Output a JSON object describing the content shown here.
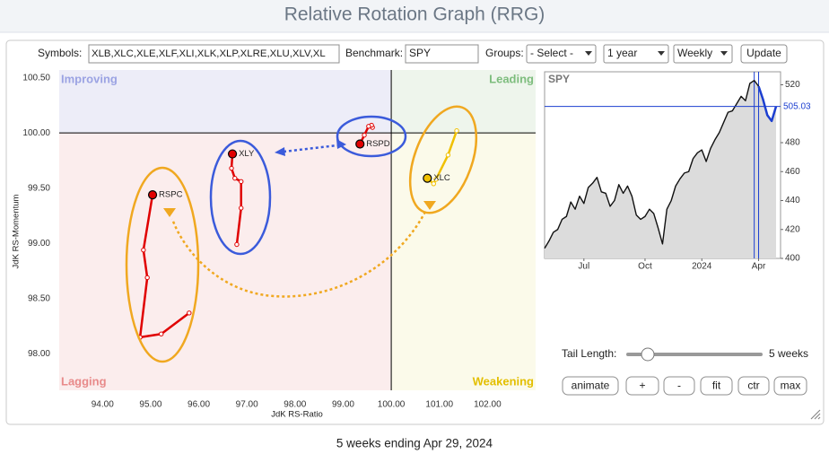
{
  "header": {
    "title": "Relative Rotation Graph (RRG)"
  },
  "controls": {
    "symbols_label": "Symbols:",
    "symbols": "XLB,XLC,XLE,XLF,XLI,XLK,XLP,XLRE,XLU,XLV,XL",
    "benchmark_label": "Benchmark:",
    "benchmark": "SPY",
    "groups_label": "Groups:",
    "groups": "- Select -",
    "period": "1 year",
    "interval": "Weekly",
    "update": "Update",
    "tail_length_label": "Tail Length:",
    "tail_length": "5 weeks",
    "buttons": [
      "animate",
      "+",
      "-",
      "fit",
      "ctr",
      "max"
    ]
  },
  "chart_data": [
    {
      "type": "rrg",
      "xlabel": "JdK RS-Ratio",
      "ylabel": "JdK RS-Momentum",
      "xlim": [
        93.1,
        103.0
      ],
      "ylim": [
        97.67,
        100.57
      ],
      "center": [
        100,
        100
      ],
      "xticks": [
        {
          "value": 94,
          "label": "94.00"
        },
        {
          "value": 95,
          "label": "95.00"
        },
        {
          "value": 96,
          "label": "96.00"
        },
        {
          "value": 97,
          "label": "97.00"
        },
        {
          "value": 98,
          "label": "98.00"
        },
        {
          "value": 99,
          "label": "99.00"
        },
        {
          "value": 100,
          "label": "100.00"
        },
        {
          "value": 101,
          "label": "101.00"
        },
        {
          "value": 102,
          "label": "102.00"
        }
      ],
      "yticks": [
        {
          "value": 98,
          "label": "98.00"
        },
        {
          "value": 98.5,
          "label": "98.50"
        },
        {
          "value": 99,
          "label": "99.00"
        },
        {
          "value": 99.5,
          "label": "99.50"
        },
        {
          "value": 100,
          "label": "100.00"
        },
        {
          "value": 100.5,
          "label": "100.50"
        }
      ],
      "quadrants": [
        {
          "name": "Improving",
          "color": "#ededf8",
          "label_color": "#9ba3e3"
        },
        {
          "name": "Leading",
          "color": "#eef5ec",
          "label_color": "#7dbd7d"
        },
        {
          "name": "Lagging",
          "color": "#fbeded",
          "label_color": "#e88a8a"
        },
        {
          "name": "Weakening",
          "color": "#fbfaea",
          "label_color": "#e3bf00"
        }
      ],
      "series": [
        {
          "name": "RSPC",
          "color": "#e00000",
          "x": [
            95.8,
            95.22,
            94.78,
            94.93,
            94.85,
            95.04
          ],
          "values": [
            98.37,
            98.18,
            98.15,
            98.69,
            98.94,
            99.44
          ]
        },
        {
          "name": "XLY",
          "color": "#e00000",
          "x": [
            96.79,
            96.88,
            96.88,
            96.75,
            96.68,
            96.7
          ],
          "values": [
            98.99,
            99.32,
            99.56,
            99.59,
            99.68,
            99.81
          ]
        },
        {
          "name": "RSPD",
          "color": "#e00000",
          "x": [
            99.61,
            99.59,
            99.53,
            99.44,
            99.35
          ],
          "values": [
            100.05,
            100.07,
            100.06,
            99.98,
            99.9
          ]
        },
        {
          "name": "XLC",
          "color": "#f0c000",
          "x": [
            101.36,
            101.18,
            100.93,
            100.88,
            100.75
          ],
          "values": [
            100.02,
            99.8,
            99.58,
            99.54,
            99.59
          ]
        }
      ]
    },
    {
      "type": "line",
      "title": "SPY",
      "color": "#111111",
      "tail_color": "#1c3fd0",
      "fill": "#dcdcdc",
      "ylim": [
        400,
        529
      ],
      "yticks": [
        400,
        420,
        440,
        460,
        480,
        520
      ],
      "categories": [
        null,
        null,
        null,
        null,
        null,
        null,
        null,
        null,
        null,
        "Jul",
        null,
        null,
        null,
        null,
        null,
        null,
        null,
        null,
        null,
        null,
        null,
        null,
        null,
        "Oct",
        null,
        null,
        null,
        null,
        null,
        null,
        null,
        null,
        null,
        null,
        null,
        null,
        "2024",
        null,
        null,
        null,
        null,
        null,
        null,
        null,
        null,
        null,
        null,
        null,
        null,
        "Apr",
        null,
        null,
        null,
        null
      ],
      "values": [
        407,
        412,
        418,
        420,
        427,
        429,
        439,
        434,
        443,
        438,
        449,
        452,
        456,
        446,
        445,
        436,
        440,
        451,
        445,
        450,
        443,
        430,
        427,
        429,
        434,
        431,
        421,
        410,
        434,
        440,
        450,
        455,
        459,
        460,
        469,
        473,
        475,
        467,
        476,
        482,
        487,
        494,
        501,
        502,
        507,
        512,
        509,
        521,
        523,
        519,
        510,
        499,
        495,
        505.03
      ]
    }
  ],
  "footer": "5 weeks ending Apr 29, 2024"
}
